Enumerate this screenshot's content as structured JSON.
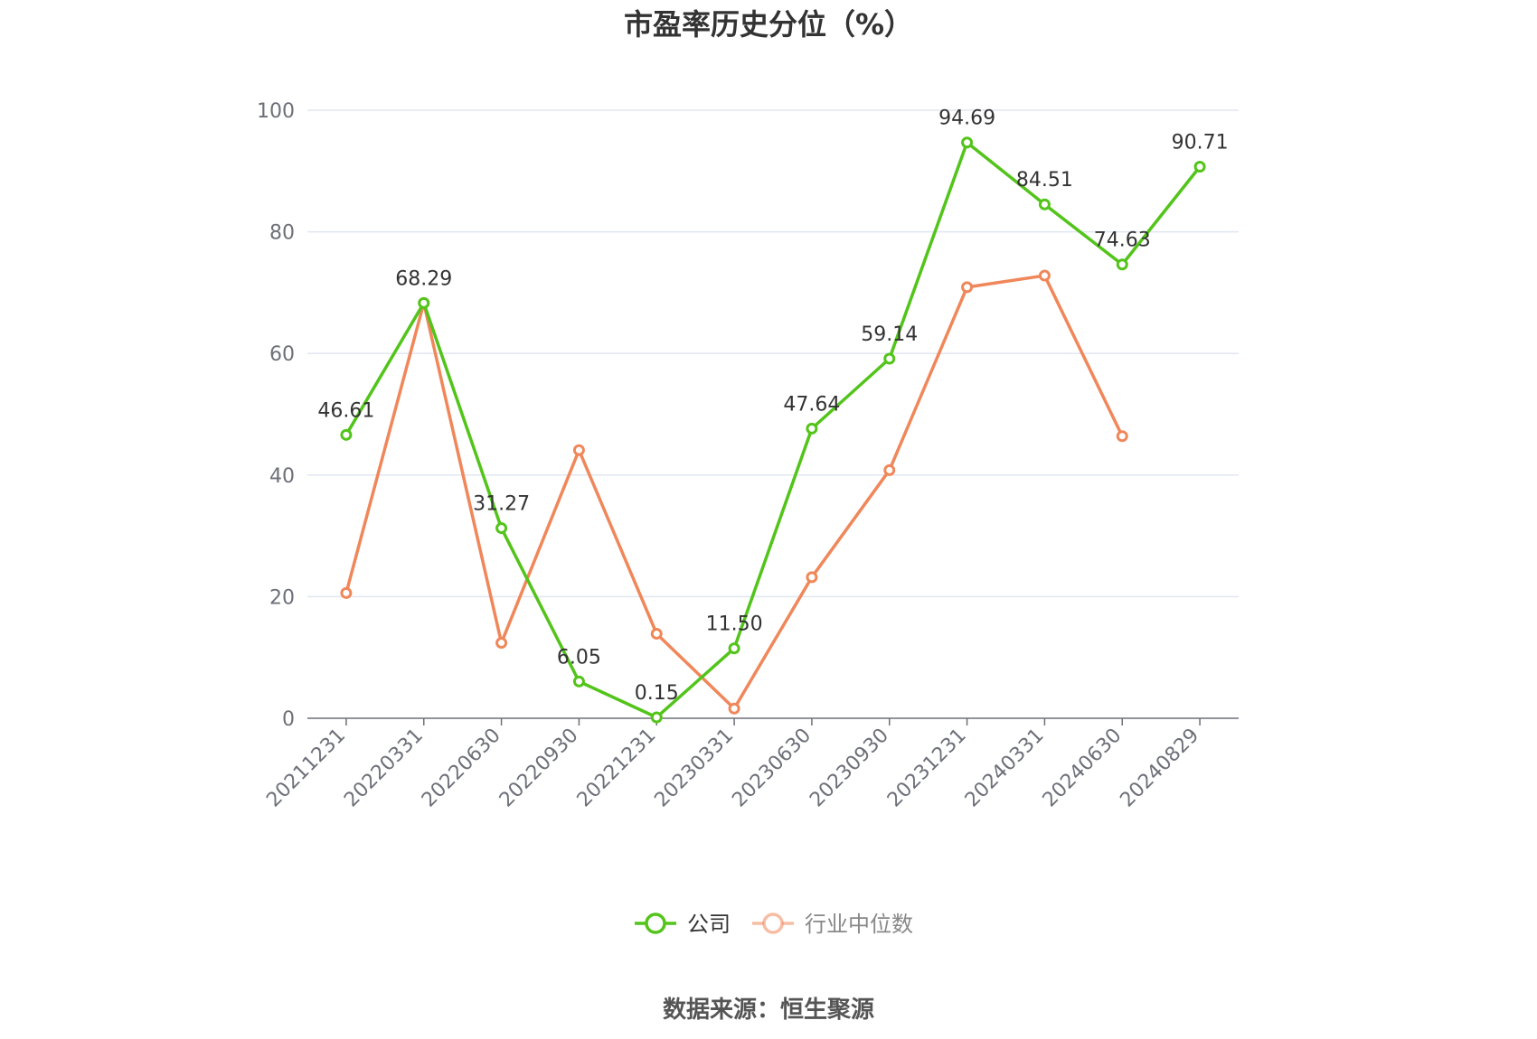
{
  "chart_data": {
    "type": "line",
    "title": "市盈率历史分位（%）",
    "categories": [
      "20211231",
      "20220331",
      "20220630",
      "20220930",
      "20221231",
      "20230331",
      "20230630",
      "20230930",
      "20231231",
      "20240331",
      "20240630",
      "20240829"
    ],
    "series": [
      {
        "name": "公司",
        "color": "#52c41a",
        "values": [
          46.61,
          68.29,
          31.27,
          6.05,
          0.15,
          11.5,
          47.64,
          59.14,
          94.69,
          84.51,
          74.63,
          90.71
        ],
        "labels": [
          "46.61",
          "68.29",
          "31.27",
          "6.05",
          "0.15",
          "11.50",
          "47.64",
          "59.14",
          "94.69",
          "84.51",
          "74.63",
          "90.71"
        ]
      },
      {
        "name": "行业中位数",
        "color": "#f0875a",
        "values": [
          20.6,
          68.3,
          12.4,
          44.1,
          13.9,
          1.6,
          23.2,
          40.8,
          70.9,
          72.8,
          46.4,
          null
        ]
      }
    ],
    "ylim": [
      0,
      100
    ],
    "yticks": [
      0,
      20,
      40,
      60,
      80,
      100
    ],
    "grid": true,
    "legend_position": "bottom"
  },
  "source": "数据来源：恒生聚源"
}
